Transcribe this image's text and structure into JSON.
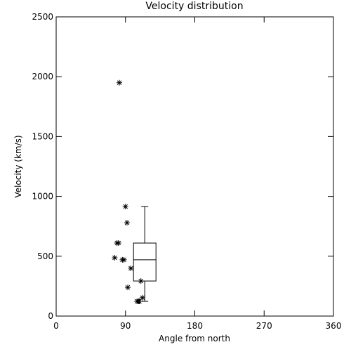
{
  "chart_data": {
    "type": "scatter-box",
    "title": "Velocity distribution",
    "x_label": "Angle from north",
    "y_label": "Velocity (km/s)",
    "xlim": [
      0,
      360
    ],
    "xticks": [
      0,
      90,
      180,
      270,
      360
    ],
    "ylim": [
      0,
      2500
    ],
    "yticks": [
      0,
      500,
      1000,
      1500,
      2000,
      2500
    ],
    "color": "#000000",
    "points": {
      "x": [
        82,
        90,
        92,
        79,
        81,
        76,
        86,
        88,
        97,
        93,
        105,
        107,
        110,
        112,
        108
      ],
      "y": [
        1950,
        915,
        780,
        610,
        610,
        487,
        470,
        470,
        399,
        240,
        123,
        123,
        293,
        153,
        123
      ]
    },
    "box": {
      "position": 115,
      "min": 123,
      "q1": 293,
      "median": 470,
      "q3": 610,
      "max": 915
    }
  }
}
